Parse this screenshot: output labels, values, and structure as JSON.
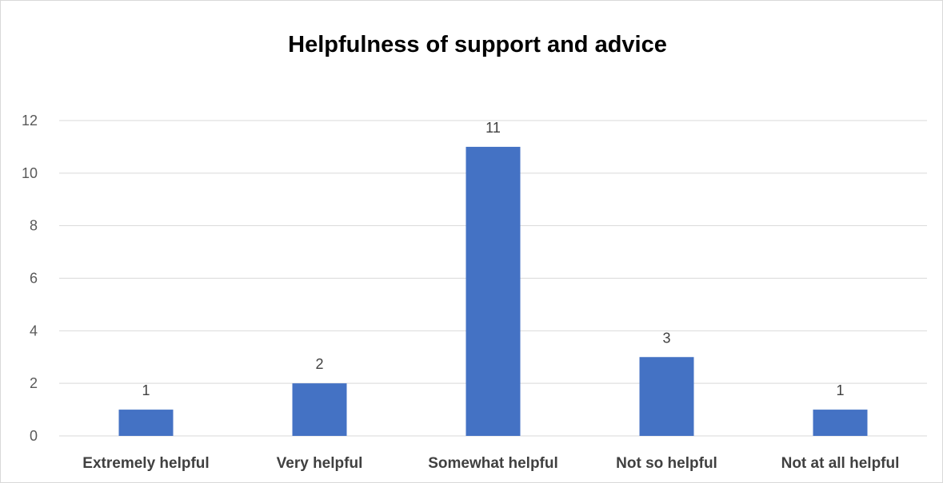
{
  "chart_data": {
    "type": "bar",
    "title": "Helpfulness of support and advice",
    "categories": [
      "Extremely helpful",
      "Very helpful",
      "Somewhat helpful",
      "Not so helpful",
      "Not at all helpful"
    ],
    "values": [
      1,
      2,
      11,
      3,
      1
    ],
    "ylim": [
      0,
      12
    ],
    "yticks": [
      0,
      2,
      4,
      6,
      8,
      10,
      12
    ],
    "xlabel": "",
    "ylabel": "",
    "grid": true,
    "legend": "none",
    "data_labels": true,
    "bar_color": "#4472c4",
    "gridline_color": "#d9d9d9"
  }
}
